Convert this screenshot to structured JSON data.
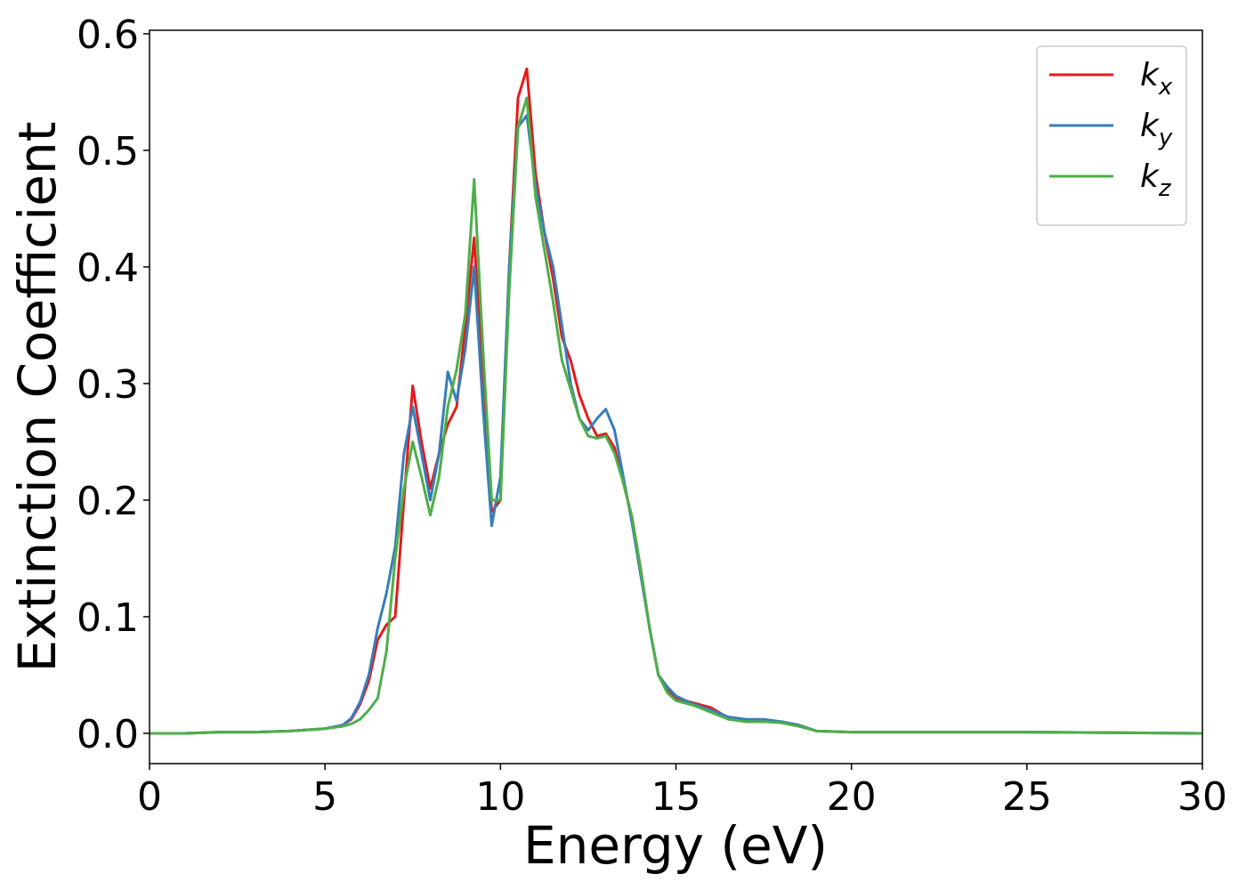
{
  "chart_data": {
    "type": "line",
    "x_label": "Energy (eV)",
    "y_label": "Extinction Coefficient",
    "x": [
      0,
      1,
      2,
      3,
      4,
      5,
      5.5,
      5.75,
      6,
      6.25,
      6.5,
      6.75,
      7,
      7.25,
      7.5,
      7.75,
      8,
      8.25,
      8.5,
      8.75,
      9,
      9.25,
      9.5,
      9.75,
      10,
      10.25,
      10.5,
      10.75,
      11,
      11.25,
      11.5,
      11.75,
      12,
      12.25,
      12.5,
      12.75,
      13,
      13.25,
      13.5,
      13.75,
      14,
      14.25,
      14.5,
      14.75,
      15,
      15.5,
      16,
      16.5,
      17,
      17.5,
      18,
      18.5,
      19,
      20,
      22,
      25,
      30
    ],
    "series": [
      {
        "name": "kx",
        "color": "#e41a1c",
        "values": [
          0,
          0,
          0.001,
          0.001,
          0.002,
          0.004,
          0.007,
          0.012,
          0.025,
          0.045,
          0.08,
          0.093,
          0.1,
          0.2,
          0.298,
          0.25,
          0.21,
          0.24,
          0.265,
          0.28,
          0.35,
          0.425,
          0.3,
          0.19,
          0.2,
          0.4,
          0.545,
          0.57,
          0.48,
          0.43,
          0.39,
          0.34,
          0.32,
          0.29,
          0.27,
          0.255,
          0.257,
          0.245,
          0.215,
          0.185,
          0.14,
          0.09,
          0.05,
          0.038,
          0.03,
          0.026,
          0.022,
          0.013,
          0.01,
          0.01,
          0.01,
          0.007,
          0.002,
          0.001,
          0.001,
          0.001,
          0
        ]
      },
      {
        "name": "ky",
        "color": "#377eb8",
        "values": [
          0,
          0,
          0.001,
          0.001,
          0.002,
          0.004,
          0.007,
          0.013,
          0.027,
          0.05,
          0.09,
          0.12,
          0.16,
          0.24,
          0.28,
          0.24,
          0.2,
          0.24,
          0.31,
          0.285,
          0.33,
          0.4,
          0.28,
          0.178,
          0.22,
          0.4,
          0.52,
          0.53,
          0.47,
          0.43,
          0.4,
          0.35,
          0.3,
          0.27,
          0.26,
          0.27,
          0.278,
          0.26,
          0.22,
          0.18,
          0.135,
          0.09,
          0.05,
          0.04,
          0.032,
          0.025,
          0.02,
          0.014,
          0.012,
          0.012,
          0.01,
          0.007,
          0.002,
          0.001,
          0.001,
          0.001,
          0
        ]
      },
      {
        "name": "kz",
        "color": "#4daf4a",
        "values": [
          0,
          0,
          0.001,
          0.001,
          0.002,
          0.004,
          0.006,
          0.008,
          0.012,
          0.02,
          0.03,
          0.07,
          0.15,
          0.21,
          0.25,
          0.22,
          0.187,
          0.22,
          0.28,
          0.312,
          0.36,
          0.475,
          0.33,
          0.2,
          0.2,
          0.38,
          0.52,
          0.545,
          0.46,
          0.415,
          0.37,
          0.32,
          0.295,
          0.27,
          0.255,
          0.253,
          0.255,
          0.24,
          0.215,
          0.185,
          0.14,
          0.09,
          0.05,
          0.035,
          0.028,
          0.024,
          0.018,
          0.012,
          0.01,
          0.01,
          0.009,
          0.006,
          0.002,
          0.001,
          0.001,
          0.001,
          0
        ]
      }
    ],
    "xlim": [
      0,
      30
    ],
    "xticks": [
      0,
      5,
      10,
      15,
      20,
      25,
      30
    ],
    "ylim": [
      -0.026,
      0.603
    ],
    "yticks": [
      {
        "value": 0,
        "label": "0.0"
      },
      0.1,
      0.2,
      0.3,
      0.4,
      0.5,
      0.6
    ],
    "grid": false,
    "legend": "upper right"
  }
}
